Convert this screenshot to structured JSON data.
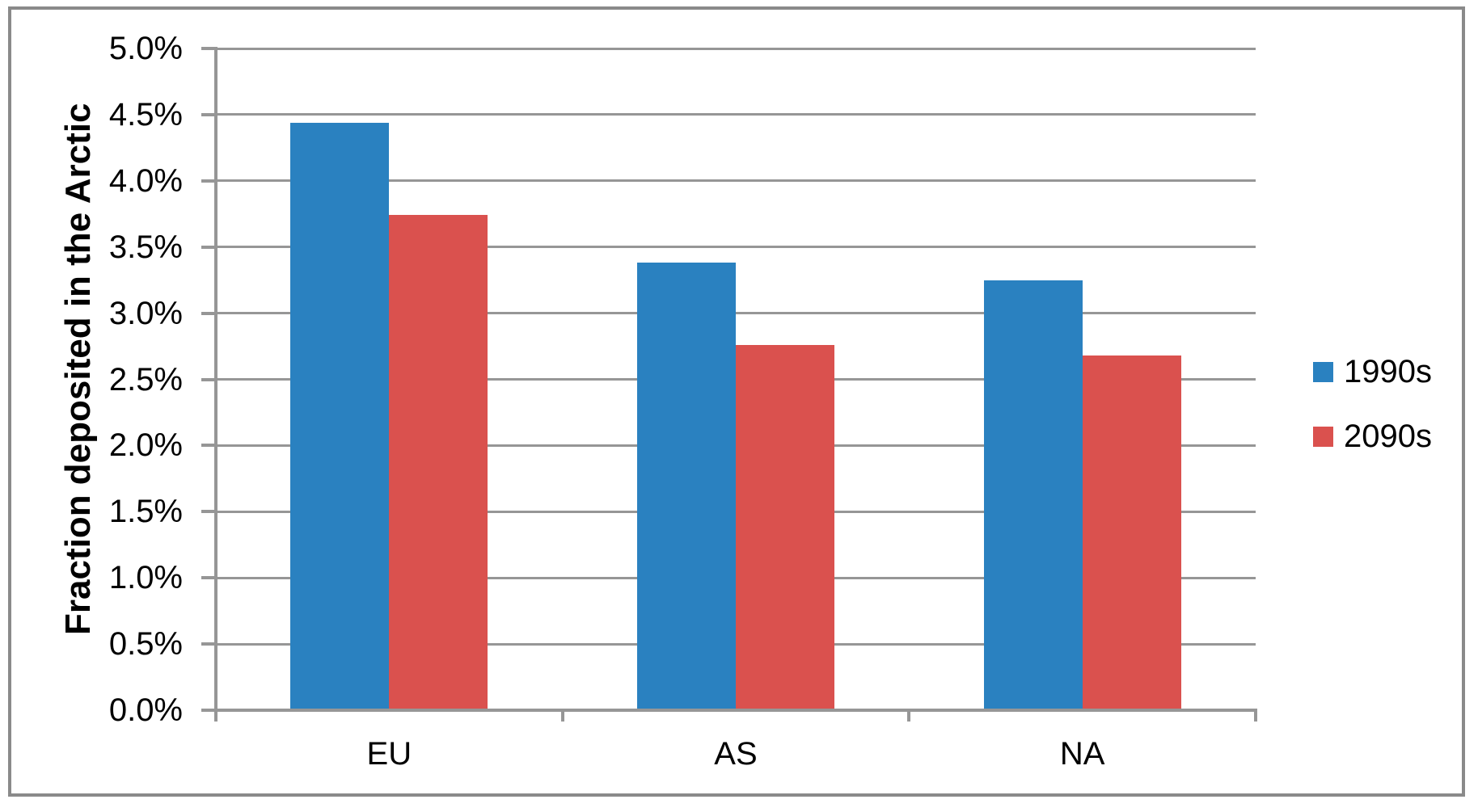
{
  "chart_data": {
    "type": "bar",
    "title": "",
    "ylabel": "Fraction deposited in the Arctic",
    "xlabel": "",
    "categories": [
      "EU",
      "AS",
      "NA"
    ],
    "series": [
      {
        "name": "1990s",
        "color": "#2a81c0",
        "values": [
          4.44,
          3.38,
          3.25
        ]
      },
      {
        "name": "2090s",
        "color": "#da514e",
        "values": [
          3.74,
          2.76,
          2.68
        ]
      }
    ],
    "value_format": "percent",
    "ylim": [
      0,
      5
    ],
    "y_ticks": [
      {
        "value": 0.0,
        "label": "0.0%"
      },
      {
        "value": 0.5,
        "label": "0.5%"
      },
      {
        "value": 1.0,
        "label": "1.0%"
      },
      {
        "value": 1.5,
        "label": "1.5%"
      },
      {
        "value": 2.0,
        "label": "2.0%"
      },
      {
        "value": 2.5,
        "label": "2.5%"
      },
      {
        "value": 3.0,
        "label": "3.0%"
      },
      {
        "value": 3.5,
        "label": "3.5%"
      },
      {
        "value": 4.0,
        "label": "4.0%"
      },
      {
        "value": 4.5,
        "label": "4.5%"
      },
      {
        "value": 5.0,
        "label": "5.0%"
      }
    ],
    "grid": true,
    "legend_position": "right"
  },
  "styles": {
    "grid_color": "#969696",
    "axis_color": "#969696",
    "frame_color": "#8a8a8a",
    "background": "#ffffff",
    "text_color": "#000000"
  }
}
